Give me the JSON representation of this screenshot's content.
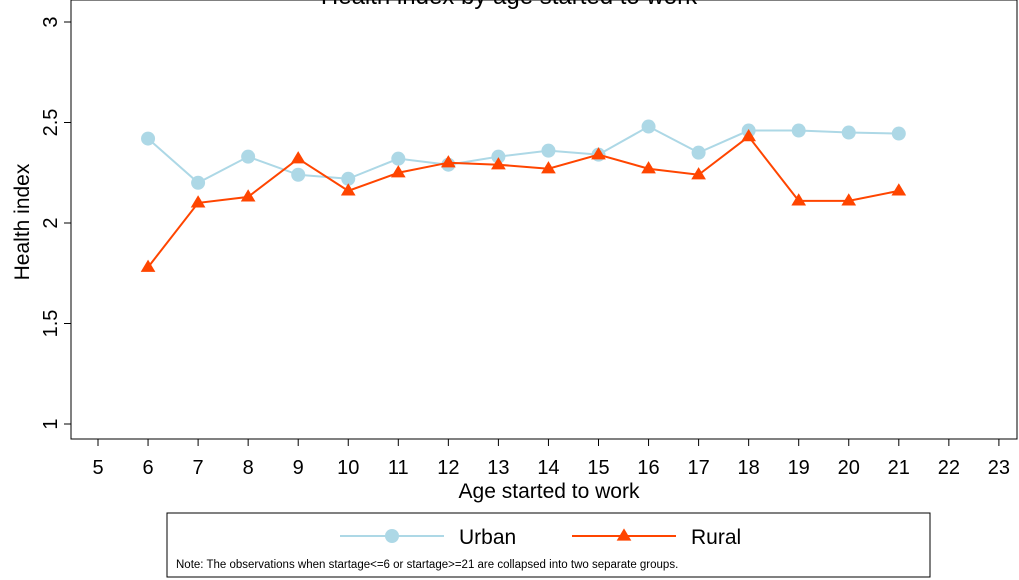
{
  "chart_data": {
    "type": "line",
    "title": "Health index by age started to work",
    "xlabel": "Age started to work",
    "ylabel": "Health index",
    "xlim": [
      5,
      23
    ],
    "ylim": [
      1,
      3
    ],
    "xticks": [
      "5",
      "6",
      "7",
      "8",
      "9",
      "10",
      "11",
      "12",
      "13",
      "14",
      "15",
      "16",
      "17",
      "18",
      "19",
      "20",
      "21",
      "22",
      "23"
    ],
    "yticks": [
      "1",
      "1.5",
      "2",
      "2.5",
      "3"
    ],
    "x": [
      6,
      7,
      8,
      9,
      10,
      11,
      12,
      13,
      14,
      15,
      16,
      17,
      18,
      19,
      20,
      21
    ],
    "series": [
      {
        "name": "Urban",
        "color": "#add8e6",
        "marker": "circle",
        "values": [
          2.42,
          2.2,
          2.33,
          2.24,
          2.22,
          2.32,
          2.29,
          2.33,
          2.36,
          2.34,
          2.48,
          2.35,
          2.46,
          2.46,
          2.45,
          2.445
        ]
      },
      {
        "name": "Rural",
        "color": "#ff4500",
        "marker": "triangle",
        "values": [
          1.78,
          2.1,
          2.13,
          2.32,
          2.16,
          2.25,
          2.3,
          2.29,
          2.27,
          2.34,
          2.27,
          2.24,
          2.43,
          2.11,
          2.11,
          2.16
        ]
      }
    ],
    "grid": false,
    "legend_position": "bottom"
  },
  "legend": {
    "note": "Note: The observations when startage<=6 or startage>=21 are collapsed into two separate groups."
  }
}
